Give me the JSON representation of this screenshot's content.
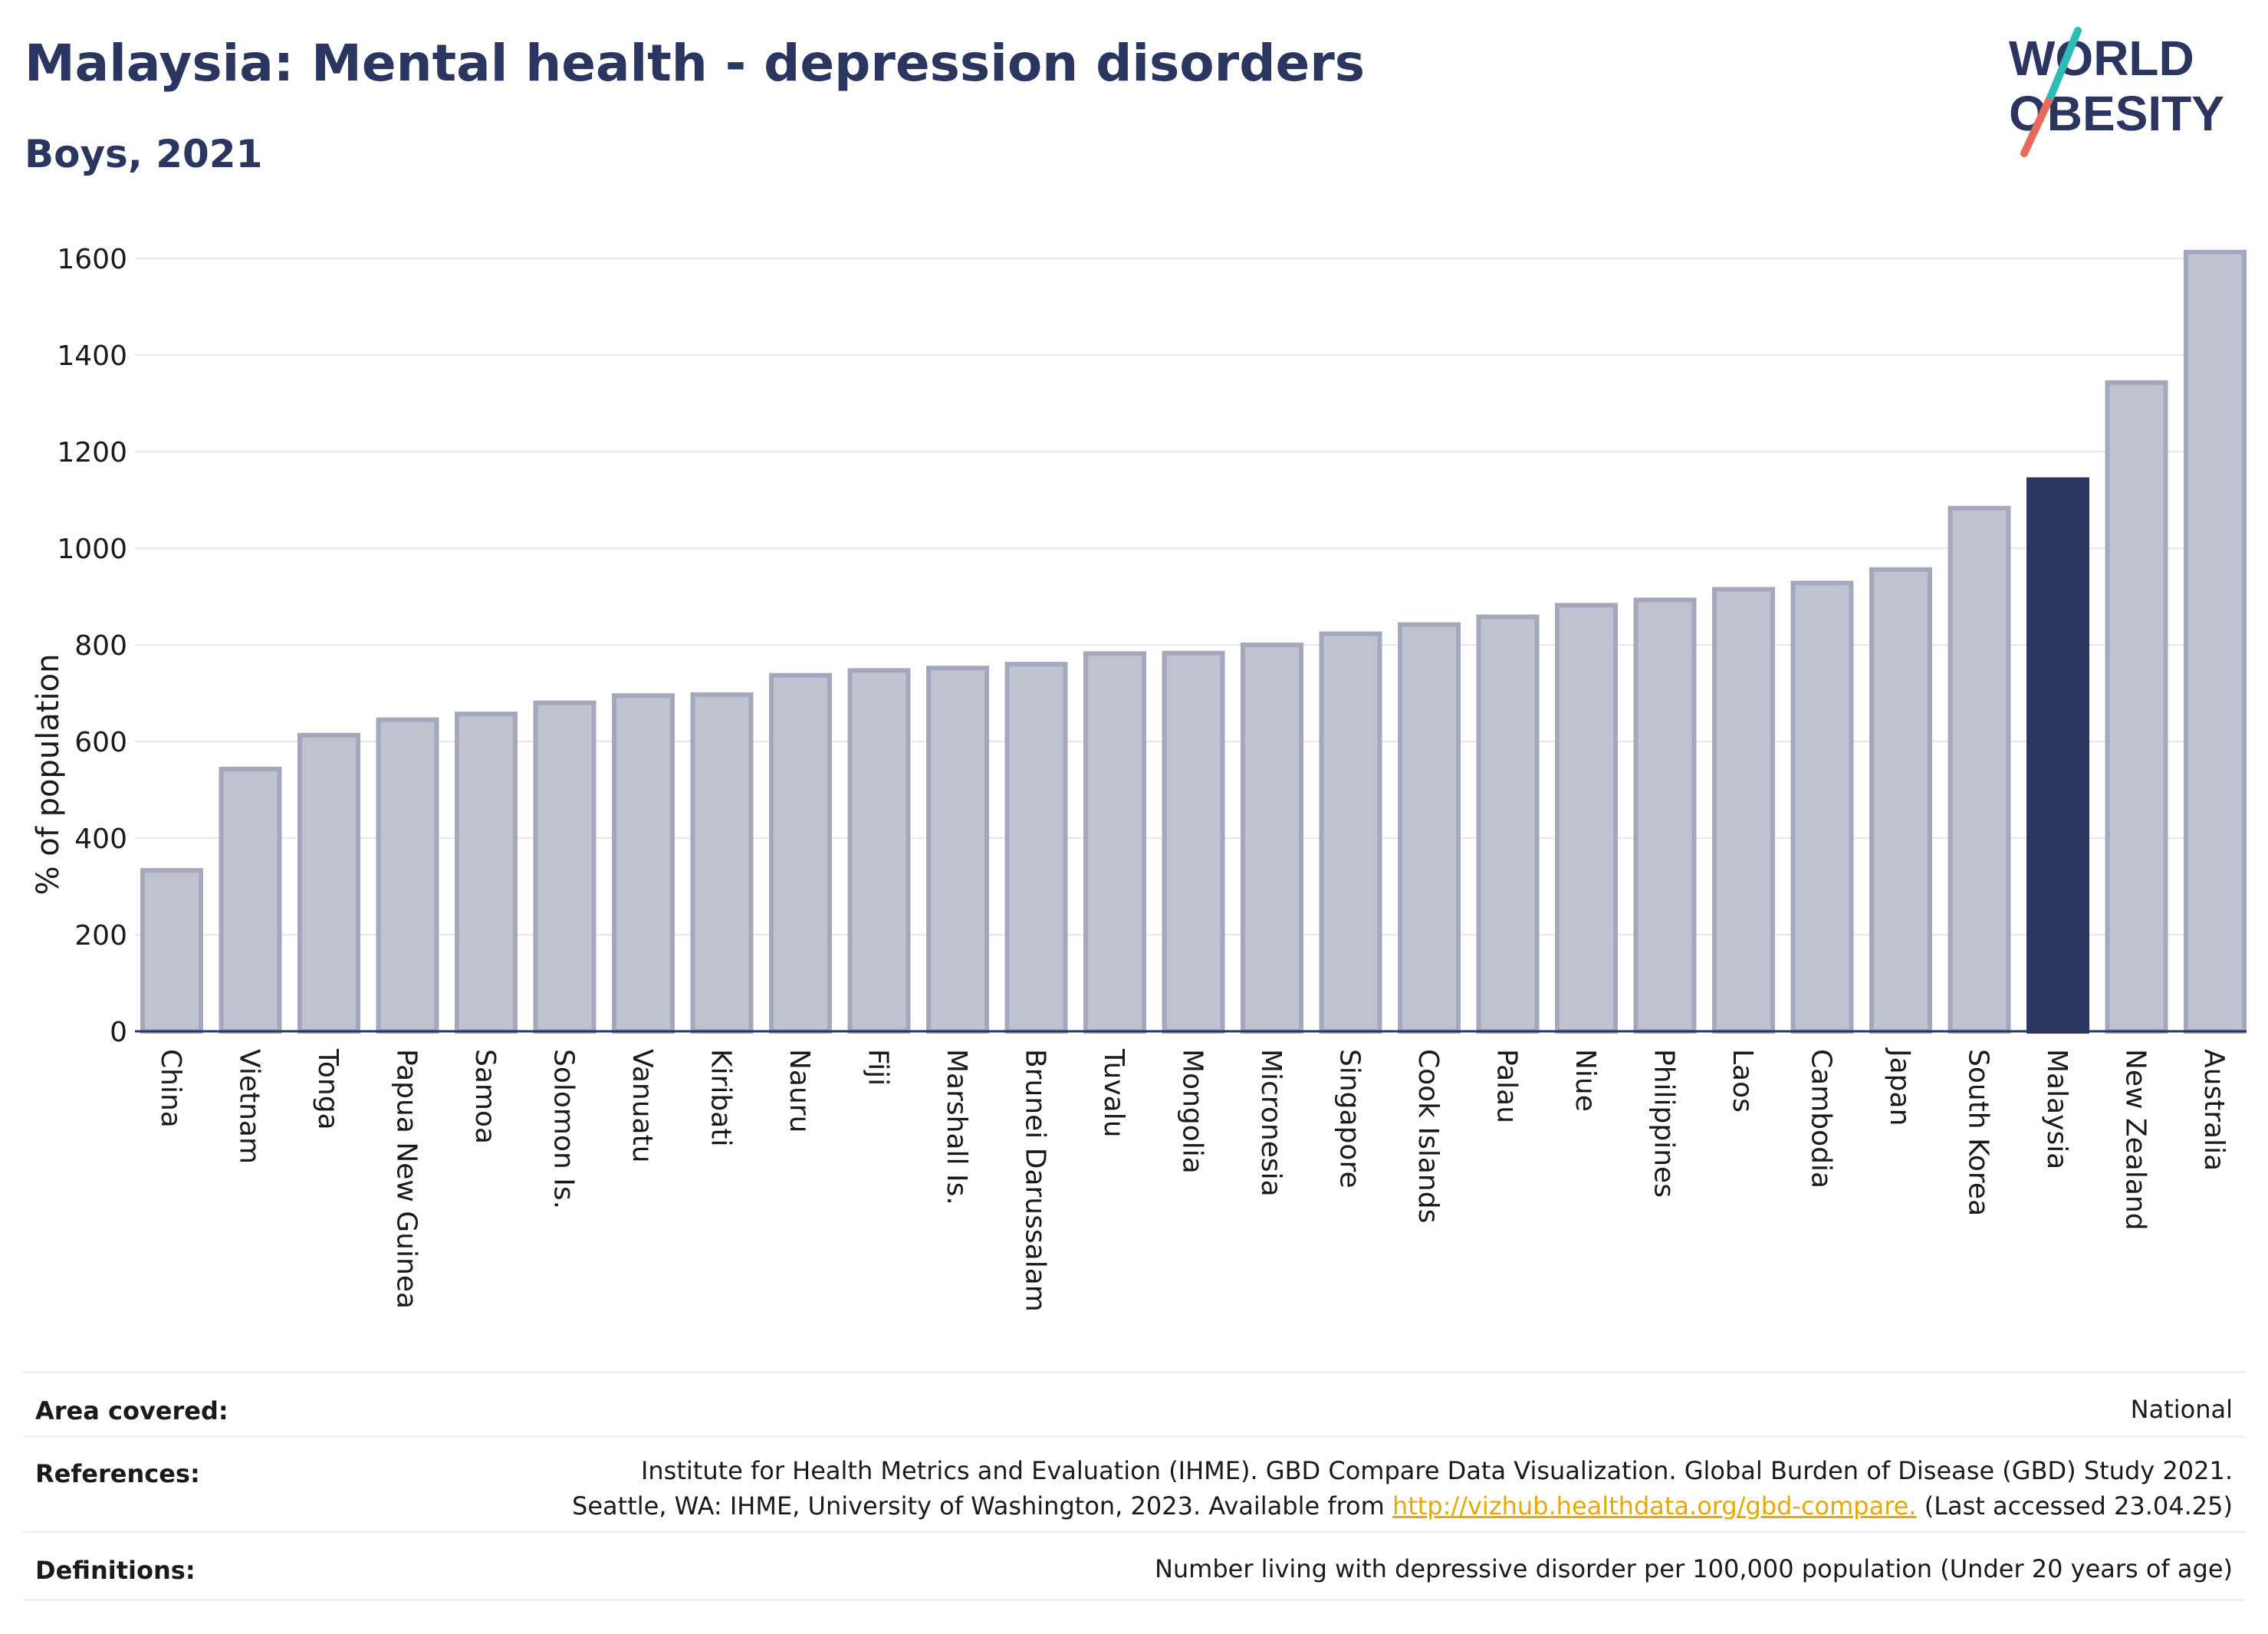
{
  "header": {
    "title": "Malaysia: Mental health - depression disorders",
    "subtitle": "Boys, 2021",
    "logo": {
      "line1": "WORLD",
      "line2": "OBESITY"
    }
  },
  "chart_data": {
    "type": "bar",
    "title": "Malaysia: Mental health - depression disorders",
    "subtitle": "Boys, 2021",
    "ylabel": "% of population",
    "xlabel": "",
    "ylim": [
      0,
      1600
    ],
    "yticks": [
      0,
      200,
      400,
      600,
      800,
      1000,
      1200,
      1400,
      1600
    ],
    "grid": true,
    "highlight": "Malaysia",
    "categories": [
      "China",
      "Vietnam",
      "Tonga",
      "Papua New Guinea",
      "Samoa",
      "Solomon Is.",
      "Vanuatu",
      "Kiribati",
      "Nauru",
      "Fiji",
      "Marshall Is.",
      "Brunei Darussalam",
      "Tuvalu",
      "Mongolia",
      "Micronesia",
      "Singapore",
      "Cook Islands",
      "Palau",
      "Niue",
      "Philippines",
      "Laos",
      "Cambodia",
      "Japan",
      "South Korea",
      "Malaysia",
      "New Zealand",
      "Australia"
    ],
    "values": [
      333,
      543,
      613,
      645,
      657,
      680,
      695,
      697,
      737,
      747,
      752,
      760,
      782,
      783,
      800,
      823,
      842,
      858,
      882,
      893,
      915,
      928,
      956,
      1083,
      1142,
      1343,
      1613
    ],
    "colors": {
      "bar": "#bfc2cf",
      "bar_stroke": "#a3a8bd",
      "highlight": "#2a3560",
      "grid": "#e6e8ee",
      "axis": "#2a3560"
    }
  },
  "footer": {
    "area_label": "Area covered:",
    "area_value": "National",
    "references_label": "References:",
    "references_line1": "Institute for Health Metrics and Evaluation (IHME). GBD Compare Data Visualization. Global Burden of Disease (GBD) Study 2021.",
    "references_line2_prefix": "Seattle, WA: IHME, University of Washington, 2023. Available from ",
    "references_link": "http://vizhub.healthdata.org/gbd-compare.",
    "references_line2_suffix": " (Last accessed 23.04.25)",
    "definitions_label": "Definitions:",
    "definitions_value": "Number living with depressive disorder per 100,000 population (Under 20 years of age)"
  }
}
